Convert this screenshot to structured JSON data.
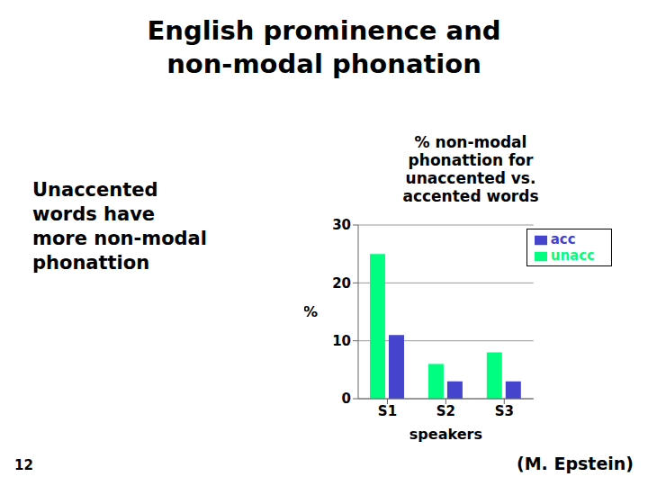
{
  "chart_data": {
    "type": "bar",
    "title": "English prominence and\nnon-modal phonation",
    "subtitle": "% non-modal\nphonattion for\nunaccented vs.\naccented words",
    "annotations": [
      "Unaccented\nwords have\nmore non-modal\nphonattion",
      "(M. Epstein)",
      "12"
    ],
    "categories": [
      "S1",
      "S2",
      "S3"
    ],
    "series": [
      {
        "name": "unacc",
        "color": "#00ff80",
        "values": [
          25,
          6,
          8
        ]
      },
      {
        "name": "acc",
        "color": "#4444cc",
        "values": [
          11,
          3,
          3
        ]
      }
    ],
    "xlabel": "speakers",
    "ylabel": "%",
    "ylim": [
      0,
      30
    ],
    "yticks": [
      0,
      10,
      20,
      30
    ],
    "grid": true,
    "legend": "upper right"
  }
}
